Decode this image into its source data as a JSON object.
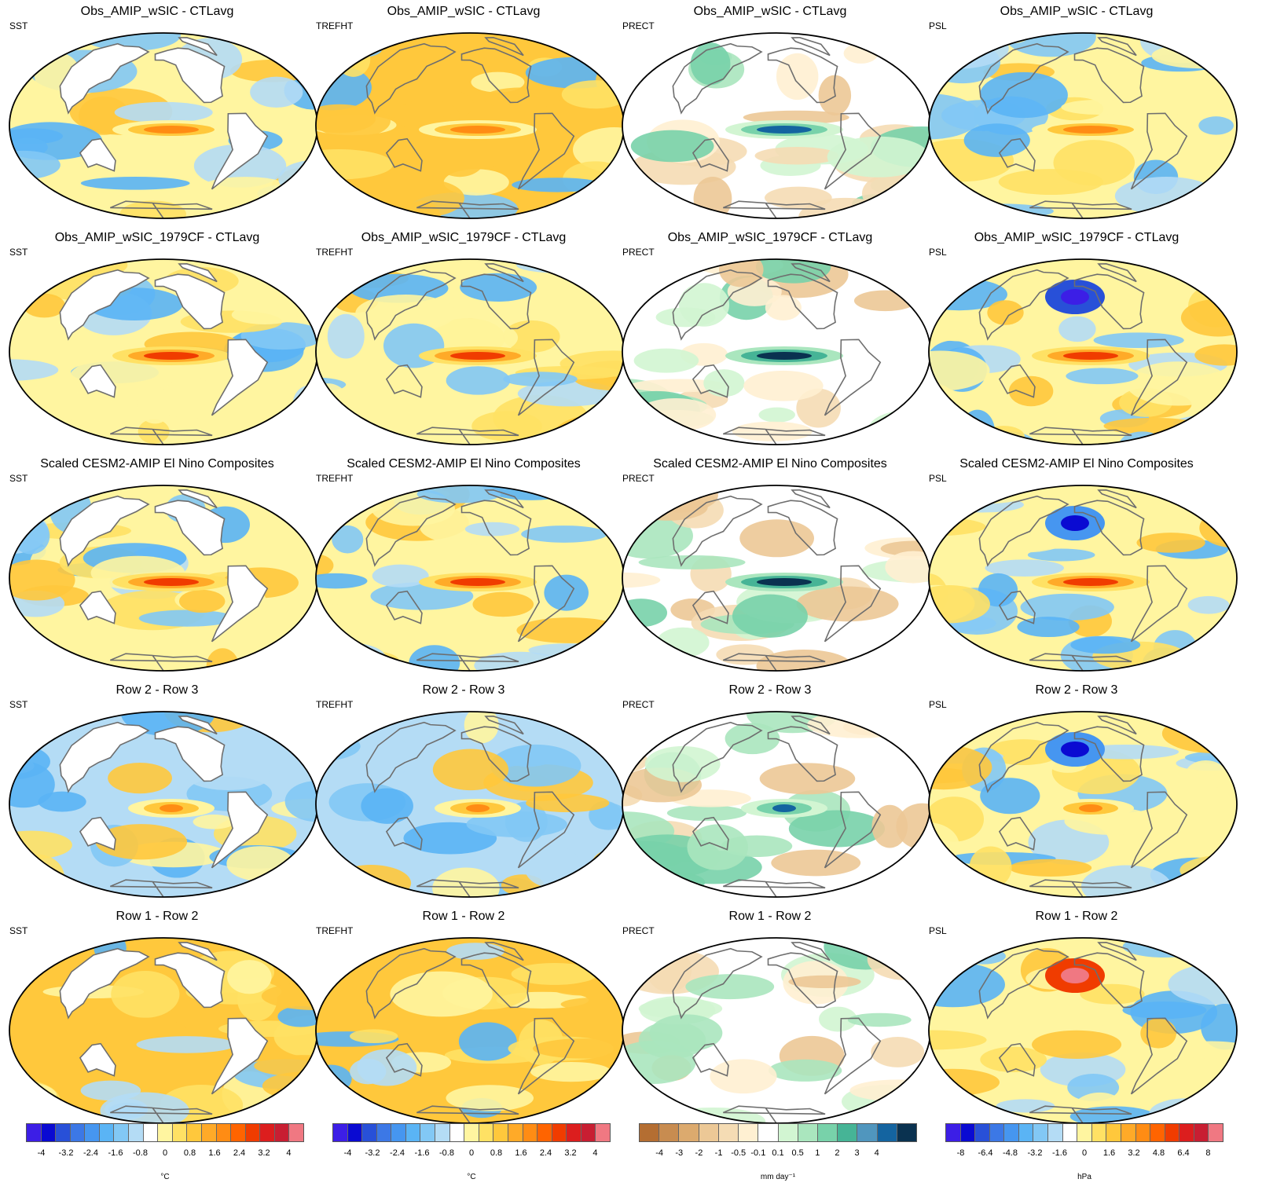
{
  "rows": [
    {
      "title": "Obs_AMIP_wSIC - CTLavg"
    },
    {
      "title": "Obs_AMIP_wSIC_1979CF - CTLavg"
    },
    {
      "title": "Scaled CESM2-AMIP El Nino Composites"
    },
    {
      "title": "Row 2 - Row 3"
    },
    {
      "title": "Row 1 - Row 2"
    }
  ],
  "columns": [
    {
      "variable": "SST"
    },
    {
      "variable": "TREFHT"
    },
    {
      "variable": "PRECT"
    },
    {
      "variable": "PSL"
    }
  ],
  "colorbars": [
    {
      "variable": "SST",
      "unit": "°C",
      "ticks": [
        "-4",
        "-3.2",
        "-2.4",
        "-1.6",
        "-0.8",
        "0",
        "0.8",
        "1.6",
        "2.4",
        "3.2",
        "4"
      ],
      "colors": [
        "#3c1ee6",
        "#0a0ad2",
        "#2850d8",
        "#3c78e6",
        "#4696f0",
        "#5ab4f5",
        "#82c8f5",
        "#b4dcf5",
        "#ffffff",
        "#fff5a0",
        "#ffe164",
        "#ffc83c",
        "#ffaa28",
        "#ff8c14",
        "#ff6400",
        "#f03c00",
        "#dc1e1e",
        "#c81e32",
        "#f07882"
      ]
    },
    {
      "variable": "TREFHT",
      "unit": "°C",
      "ticks": [
        "-4",
        "-3.2",
        "-2.4",
        "-1.6",
        "-0.8",
        "0",
        "0.8",
        "1.6",
        "2.4",
        "3.2",
        "4"
      ],
      "colors": [
        "#3c1ee6",
        "#0a0ad2",
        "#2850d8",
        "#3c78e6",
        "#4696f0",
        "#5ab4f5",
        "#82c8f5",
        "#b4dcf5",
        "#ffffff",
        "#fff5a0",
        "#ffe164",
        "#ffc83c",
        "#ffaa28",
        "#ff8c14",
        "#ff6400",
        "#f03c00",
        "#dc1e1e",
        "#c81e32",
        "#f07882"
      ]
    },
    {
      "variable": "PRECT",
      "unit": "mm day⁻¹",
      "ticks": [
        "-4",
        "-3",
        "-2",
        "-1",
        "-0.5",
        "-0.1",
        "0.1",
        "0.5",
        "1",
        "2",
        "3",
        "4"
      ],
      "colors": [
        "#b46e32",
        "#c88c50",
        "#dcaa6e",
        "#ecc896",
        "#f5dcb4",
        "#fff0d2",
        "#ffffff",
        "#d2f5d2",
        "#aae6be",
        "#78d2aa",
        "#46b496",
        "#5096be",
        "#1464a0",
        "#0a3250"
      ]
    },
    {
      "variable": "PSL",
      "unit": "hPa",
      "ticks": [
        "-8",
        "-6.4",
        "-4.8",
        "-3.2",
        "-1.6",
        "0",
        "1.6",
        "3.2",
        "4.8",
        "6.4",
        "8"
      ],
      "colors": [
        "#3c1ee6",
        "#0a0ad2",
        "#2850d8",
        "#3c78e6",
        "#4696f0",
        "#5ab4f5",
        "#82c8f5",
        "#b4dcf5",
        "#ffffff",
        "#fff5a0",
        "#ffe164",
        "#ffc83c",
        "#ffaa28",
        "#ff8c14",
        "#ff6400",
        "#f03c00",
        "#dc1e1e",
        "#c81e32",
        "#f07882"
      ]
    }
  ]
}
